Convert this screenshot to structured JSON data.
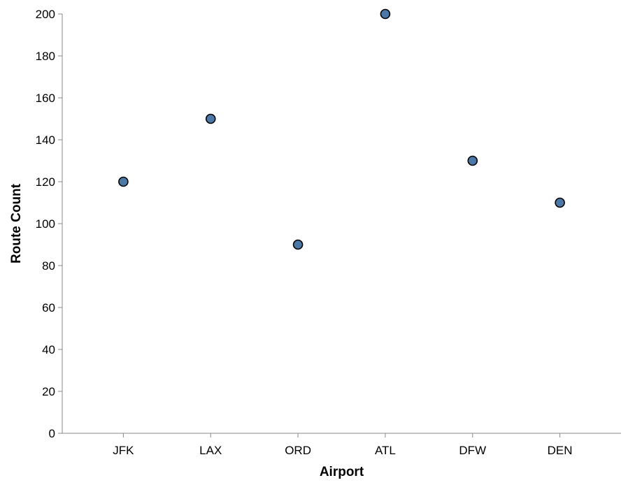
{
  "chart_data": {
    "type": "scatter",
    "title": "",
    "xlabel": "Airport",
    "ylabel": "Route Count",
    "categories": [
      "JFK",
      "LAX",
      "ORD",
      "ATL",
      "DFW",
      "DEN"
    ],
    "series": [
      {
        "name": "Route Count",
        "values": [
          120,
          150,
          90,
          200,
          130,
          110
        ]
      }
    ],
    "ylim": [
      0,
      200
    ],
    "yticks": [
      0,
      20,
      40,
      60,
      80,
      100,
      120,
      140,
      160,
      180,
      200
    ],
    "grid": false,
    "legend": "none",
    "colors": {
      "point_fill": "#4c78a8",
      "point_stroke": "#000000",
      "axis": "#888888"
    }
  }
}
